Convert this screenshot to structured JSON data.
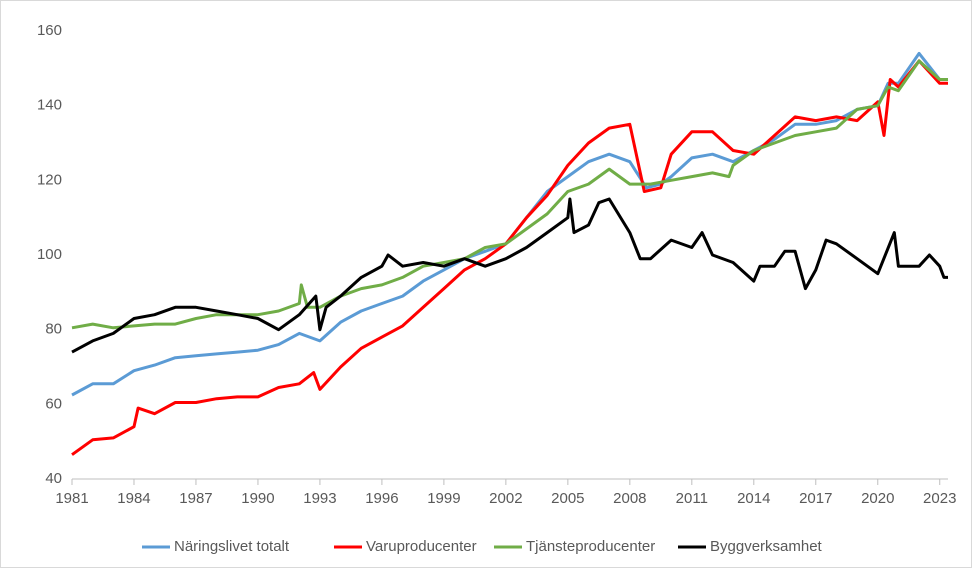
{
  "chart_data": {
    "type": "line",
    "xlim": [
      1981,
      2023.4
    ],
    "xticks": [
      1981,
      1984,
      1987,
      1990,
      1993,
      1996,
      1999,
      2002,
      2005,
      2008,
      2011,
      2014,
      2017,
      2020,
      2023
    ],
    "ylim": [
      40,
      160
    ],
    "yticks": [
      40,
      60,
      80,
      100,
      120,
      140,
      160
    ],
    "grid": false,
    "legend": "bottom",
    "series": [
      {
        "name": "Näringslivet totalt",
        "color": "#5b9bd5",
        "x": [
          1981,
          1982,
          1983,
          1984,
          1985,
          1986,
          1987,
          1988,
          1989,
          1990,
          1991,
          1992,
          1993,
          1994,
          1995,
          1996,
          1997,
          1998,
          1999,
          2000,
          2001,
          2002,
          2003,
          2004,
          2005,
          2006,
          2007,
          2008,
          2008.8,
          2009.5,
          2010,
          2011,
          2012,
          2013,
          2014,
          2015,
          2016,
          2017,
          2018,
          2019,
          2020,
          2020.5,
          2021,
          2022,
          2023,
          2023.4
        ],
        "values": [
          62.5,
          65.5,
          65.5,
          69,
          70.5,
          72.5,
          73,
          73.5,
          74,
          74.5,
          76,
          79,
          77,
          82,
          85,
          87,
          89,
          93,
          96,
          99,
          101,
          103,
          110,
          117,
          121,
          125,
          127,
          125,
          118,
          119,
          121,
          126,
          127,
          125,
          128,
          131,
          135,
          135,
          136,
          139,
          140,
          146,
          146,
          154,
          147,
          147
        ]
      },
      {
        "name": "Varuproducenter",
        "color": "#ff0000",
        "x": [
          1981,
          1982,
          1983,
          1984,
          1984.2,
          1985,
          1986,
          1987,
          1988,
          1989,
          1990,
          1991,
          1992,
          1992.7,
          1993,
          1994,
          1995,
          1996,
          1997,
          1998,
          1999,
          2000,
          2001,
          2002,
          2003,
          2004,
          2005,
          2006,
          2007,
          2008,
          2008.7,
          2009.5,
          2010,
          2011,
          2012,
          2013,
          2014,
          2015,
          2016,
          2017,
          2018,
          2019,
          2020,
          2020.3,
          2020.6,
          2021,
          2022,
          2023,
          2023.4
        ],
        "values": [
          46.5,
          50.5,
          51,
          54,
          59,
          57.5,
          60.5,
          60.5,
          61.5,
          62,
          62,
          64.5,
          65.5,
          68.5,
          64,
          70,
          75,
          78,
          81,
          86,
          91,
          96,
          99,
          103,
          110,
          116,
          124,
          130,
          134,
          135,
          117,
          118,
          127,
          133,
          133,
          128,
          127,
          132,
          137,
          136,
          137,
          136,
          141,
          132,
          147,
          145,
          152,
          146,
          146
        ]
      },
      {
        "name": "Tjänsteproducenter",
        "color": "#70ad47",
        "x": [
          1981,
          1982,
          1983,
          1984,
          1985,
          1986,
          1987,
          1988,
          1989,
          1990,
          1991,
          1992,
          1992.1,
          1992.4,
          1993,
          1994,
          1995,
          1996,
          1997,
          1998,
          1999,
          2000,
          2001,
          2002,
          2003,
          2004,
          2005,
          2006,
          2007,
          2008,
          2009,
          2010,
          2011,
          2012,
          2012.8,
          2013,
          2014,
          2015,
          2016,
          2017,
          2018,
          2019,
          2020,
          2020.5,
          2021,
          2022,
          2023,
          2023.4
        ],
        "values": [
          80.5,
          81.5,
          80.5,
          81,
          81.5,
          81.5,
          83,
          84,
          84,
          84,
          85,
          87,
          92,
          86,
          86,
          89,
          91,
          92,
          94,
          97,
          98,
          99,
          102,
          103,
          107,
          111,
          117,
          119,
          123,
          119,
          119,
          120,
          121,
          122,
          121,
          124,
          128,
          130,
          132,
          133,
          134,
          139,
          140,
          145,
          144,
          152,
          147,
          147
        ]
      },
      {
        "name": "Byggverksamhet",
        "color": "#000000",
        "x": [
          1981,
          1982,
          1983,
          1984,
          1985,
          1986,
          1987,
          1988,
          1989,
          1990,
          1991,
          1992,
          1992.8,
          1993,
          1993.3,
          1994,
          1995,
          1996,
          1996.3,
          1997,
          1998,
          1999,
          2000,
          2001,
          2002,
          2003,
          2004,
          2005,
          2005.1,
          2005.3,
          2006,
          2006.5,
          2007,
          2008,
          2008.5,
          2009,
          2010,
          2011,
          2011.5,
          2012,
          2013,
          2014,
          2014.3,
          2015,
          2015.5,
          2016,
          2016.5,
          2017,
          2017.5,
          2018,
          2019,
          2020,
          2020.8,
          2021,
          2022,
          2022.5,
          2023,
          2023.2,
          2023.4
        ],
        "values": [
          74,
          77,
          79,
          83,
          84,
          86,
          86,
          85,
          84,
          83,
          80,
          84,
          89,
          80,
          86,
          89,
          94,
          97,
          100,
          97,
          98,
          97,
          99,
          97,
          99,
          102,
          106,
          110,
          115,
          106,
          108,
          114,
          115,
          106,
          99,
          99,
          104,
          102,
          106,
          100,
          98,
          93,
          97,
          97,
          101,
          101,
          91,
          96,
          104,
          103,
          99,
          95,
          106,
          97,
          97,
          100,
          97,
          94,
          94
        ]
      }
    ]
  }
}
